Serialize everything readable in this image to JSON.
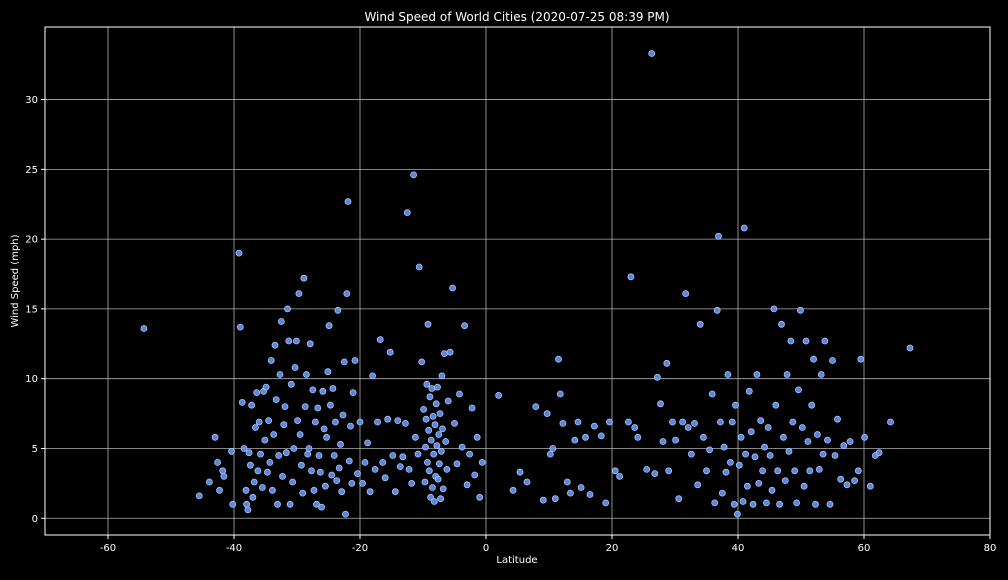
{
  "chart_data": {
    "type": "scatter",
    "title": "Wind Speed of World Cities (2020-07-25 08:39 PM)",
    "xlabel": "Latitude",
    "ylabel": "Wind Speed (mph)",
    "xlim": [
      -70,
      80
    ],
    "ylim": [
      -1.2,
      35.2
    ],
    "xticks": [
      -60,
      -40,
      -20,
      0,
      20,
      40,
      60,
      80
    ],
    "yticks": [
      0,
      5,
      10,
      15,
      20,
      25,
      30
    ],
    "grid": true,
    "colors": {
      "background": "#000000",
      "grid": "#b0b0b0",
      "marker_fill": "#6495ed",
      "marker_edge": "#a8c4ff",
      "text": "#ffffff"
    },
    "points": [
      [
        -54.3,
        13.6
      ],
      [
        -45.5,
        1.6
      ],
      [
        -43.9,
        2.6
      ],
      [
        -43.0,
        5.8
      ],
      [
        -42.6,
        4.0
      ],
      [
        -42.3,
        2.0
      ],
      [
        -41.8,
        3.4
      ],
      [
        -41.6,
        3.0
      ],
      [
        -40.4,
        4.8
      ],
      [
        -40.2,
        1.0
      ],
      [
        -39.2,
        19.0
      ],
      [
        -39.0,
        13.7
      ],
      [
        -38.7,
        8.3
      ],
      [
        -38.4,
        5.0
      ],
      [
        -38.1,
        2.0
      ],
      [
        -38.0,
        1.0
      ],
      [
        -37.8,
        0.6
      ],
      [
        -37.6,
        4.7
      ],
      [
        -37.4,
        3.8
      ],
      [
        -37.2,
        8.1
      ],
      [
        -37.0,
        1.5
      ],
      [
        -36.8,
        2.6
      ],
      [
        -36.6,
        6.5
      ],
      [
        -36.4,
        9.0
      ],
      [
        -36.2,
        3.4
      ],
      [
        -36.0,
        6.9
      ],
      [
        -35.8,
        4.6
      ],
      [
        -35.5,
        2.2
      ],
      [
        -35.3,
        9.1
      ],
      [
        -35.1,
        5.6
      ],
      [
        -34.9,
        9.4
      ],
      [
        -34.7,
        3.3
      ],
      [
        -34.5,
        7.0
      ],
      [
        -34.3,
        4.0
      ],
      [
        -34.1,
        11.3
      ],
      [
        -33.9,
        2.0
      ],
      [
        -33.7,
        6.0
      ],
      [
        -33.5,
        12.4
      ],
      [
        -33.3,
        8.5
      ],
      [
        -33.1,
        1.0
      ],
      [
        -32.9,
        4.5
      ],
      [
        -32.7,
        10.3
      ],
      [
        -32.5,
        14.1
      ],
      [
        -32.3,
        3.0
      ],
      [
        -32.1,
        6.7
      ],
      [
        -31.9,
        8.0
      ],
      [
        -31.7,
        4.7
      ],
      [
        -31.5,
        15.0
      ],
      [
        -31.3,
        12.7
      ],
      [
        -31.1,
        1.0
      ],
      [
        -30.9,
        9.6
      ],
      [
        -30.7,
        2.6
      ],
      [
        -30.5,
        5.0
      ],
      [
        -30.3,
        10.8
      ],
      [
        -30.1,
        12.7
      ],
      [
        -29.9,
        7.0
      ],
      [
        -29.7,
        16.1
      ],
      [
        -29.5,
        6.0
      ],
      [
        -29.3,
        3.8
      ],
      [
        -29.1,
        1.8
      ],
      [
        -28.9,
        17.2
      ],
      [
        -28.7,
        8.0
      ],
      [
        -28.5,
        10.3
      ],
      [
        -28.3,
        4.6
      ],
      [
        -28.1,
        5.0
      ],
      [
        -27.9,
        12.5
      ],
      [
        -27.7,
        3.4
      ],
      [
        -27.5,
        9.2
      ],
      [
        -27.3,
        2.0
      ],
      [
        -27.1,
        6.9
      ],
      [
        -26.9,
        1.0
      ],
      [
        -26.7,
        7.9
      ],
      [
        -26.5,
        4.5
      ],
      [
        -26.3,
        3.3
      ],
      [
        -26.1,
        0.8
      ],
      [
        -25.9,
        9.1
      ],
      [
        -25.7,
        6.4
      ],
      [
        -25.5,
        2.3
      ],
      [
        -25.3,
        5.8
      ],
      [
        -25.1,
        10.5
      ],
      [
        -24.9,
        13.8
      ],
      [
        -24.7,
        8.1
      ],
      [
        -24.5,
        3.1
      ],
      [
        -24.3,
        9.3
      ],
      [
        -24.1,
        4.5
      ],
      [
        -23.9,
        6.9
      ],
      [
        -23.7,
        2.7
      ],
      [
        -23.5,
        14.9
      ],
      [
        -23.3,
        3.6
      ],
      [
        -23.1,
        5.3
      ],
      [
        -22.9,
        1.9
      ],
      [
        -22.7,
        7.4
      ],
      [
        -22.5,
        11.2
      ],
      [
        -22.3,
        0.3
      ],
      [
        -22.1,
        16.1
      ],
      [
        -21.9,
        22.7
      ],
      [
        -21.7,
        4.1
      ],
      [
        -21.5,
        6.6
      ],
      [
        -21.3,
        2.5
      ],
      [
        -21.1,
        9.0
      ],
      [
        -20.8,
        11.3
      ],
      [
        -20.4,
        3.2
      ],
      [
        -20.0,
        6.9
      ],
      [
        -19.6,
        2.5
      ],
      [
        -19.2,
        4.0
      ],
      [
        -18.8,
        5.4
      ],
      [
        -18.4,
        1.9
      ],
      [
        -18.0,
        10.2
      ],
      [
        -17.6,
        3.5
      ],
      [
        -17.2,
        6.9
      ],
      [
        -16.8,
        12.8
      ],
      [
        -16.4,
        4.0
      ],
      [
        -16.0,
        2.9
      ],
      [
        -15.6,
        7.1
      ],
      [
        -15.2,
        11.9
      ],
      [
        -14.8,
        4.5
      ],
      [
        -14.4,
        1.9
      ],
      [
        -14.0,
        7.0
      ],
      [
        -13.6,
        3.7
      ],
      [
        -13.2,
        4.4
      ],
      [
        -12.8,
        6.8
      ],
      [
        -12.5,
        21.9
      ],
      [
        -12.2,
        3.5
      ],
      [
        -11.8,
        2.5
      ],
      [
        -11.5,
        24.6
      ],
      [
        -11.2,
        5.8
      ],
      [
        -10.8,
        4.6
      ],
      [
        -10.6,
        18.0
      ],
      [
        -10.2,
        11.2
      ],
      [
        -9.9,
        7.8
      ],
      [
        -9.7,
        2.6
      ],
      [
        -9.6,
        5.1
      ],
      [
        -9.5,
        7.1
      ],
      [
        -9.4,
        9.6
      ],
      [
        -9.3,
        4.0
      ],
      [
        -9.2,
        13.9
      ],
      [
        -9.1,
        6.3
      ],
      [
        -9.0,
        3.4
      ],
      [
        -8.9,
        8.7
      ],
      [
        -8.8,
        1.5
      ],
      [
        -8.7,
        5.6
      ],
      [
        -8.6,
        9.3
      ],
      [
        -8.5,
        2.2
      ],
      [
        -8.4,
        7.3
      ],
      [
        -8.3,
        4.6
      ],
      [
        -8.2,
        1.2
      ],
      [
        -8.1,
        6.7
      ],
      [
        -8.0,
        3.0
      ],
      [
        -7.9,
        8.2
      ],
      [
        -7.8,
        5.2
      ],
      [
        -7.7,
        9.4
      ],
      [
        -7.6,
        2.8
      ],
      [
        -7.5,
        6.0
      ],
      [
        -7.4,
        3.9
      ],
      [
        -7.3,
        7.5
      ],
      [
        -7.2,
        1.4
      ],
      [
        -7.1,
        4.8
      ],
      [
        -7.0,
        10.2
      ],
      [
        -6.9,
        6.4
      ],
      [
        -6.8,
        2.1
      ],
      [
        -6.6,
        11.8
      ],
      [
        -6.4,
        5.5
      ],
      [
        -6.2,
        3.5
      ],
      [
        -6.0,
        8.4
      ],
      [
        -5.7,
        11.9
      ],
      [
        -5.3,
        16.5
      ],
      [
        -5.0,
        6.8
      ],
      [
        -4.6,
        3.9
      ],
      [
        -4.2,
        8.9
      ],
      [
        -3.8,
        5.1
      ],
      [
        -3.4,
        13.8
      ],
      [
        -3.0,
        2.4
      ],
      [
        -2.6,
        4.6
      ],
      [
        -2.2,
        7.9
      ],
      [
        -1.8,
        3.1
      ],
      [
        -1.4,
        5.8
      ],
      [
        -1.0,
        1.5
      ],
      [
        -0.6,
        4.0
      ],
      [
        2.0,
        8.8
      ],
      [
        4.3,
        2.0
      ],
      [
        5.4,
        3.3
      ],
      [
        6.5,
        2.6
      ],
      [
        7.9,
        8.0
      ],
      [
        9.1,
        1.3
      ],
      [
        9.7,
        7.5
      ],
      [
        10.2,
        4.6
      ],
      [
        10.6,
        5.0
      ],
      [
        11.0,
        1.4
      ],
      [
        11.5,
        11.4
      ],
      [
        11.8,
        8.9
      ],
      [
        12.2,
        6.8
      ],
      [
        12.9,
        2.6
      ],
      [
        13.4,
        1.8
      ],
      [
        14.1,
        5.6
      ],
      [
        14.6,
        6.9
      ],
      [
        15.1,
        2.2
      ],
      [
        15.8,
        5.8
      ],
      [
        16.5,
        1.7
      ],
      [
        17.2,
        6.6
      ],
      [
        18.3,
        5.9
      ],
      [
        19.0,
        1.1
      ],
      [
        19.6,
        6.9
      ],
      [
        20.5,
        3.4
      ],
      [
        21.2,
        3.0
      ],
      [
        22.6,
        6.9
      ],
      [
        23.0,
        17.3
      ],
      [
        23.6,
        6.5
      ],
      [
        24.1,
        5.8
      ],
      [
        25.5,
        3.5
      ],
      [
        26.3,
        33.3
      ],
      [
        26.8,
        3.2
      ],
      [
        27.2,
        10.1
      ],
      [
        27.7,
        8.2
      ],
      [
        28.1,
        5.5
      ],
      [
        28.7,
        11.1
      ],
      [
        29.0,
        3.4
      ],
      [
        29.6,
        6.9
      ],
      [
        30.1,
        5.6
      ],
      [
        30.6,
        1.4
      ],
      [
        31.2,
        6.9
      ],
      [
        31.7,
        16.1
      ],
      [
        32.1,
        6.5
      ],
      [
        32.6,
        4.6
      ],
      [
        33.1,
        6.8
      ],
      [
        33.6,
        2.4
      ],
      [
        34.0,
        13.9
      ],
      [
        34.5,
        5.8
      ],
      [
        35.0,
        3.4
      ],
      [
        35.5,
        4.9
      ],
      [
        35.9,
        8.9
      ],
      [
        36.3,
        1.1
      ],
      [
        36.7,
        14.9
      ],
      [
        36.9,
        20.2
      ],
      [
        37.2,
        6.9
      ],
      [
        37.5,
        1.8
      ],
      [
        37.8,
        5.1
      ],
      [
        38.1,
        3.3
      ],
      [
        38.4,
        10.3
      ],
      [
        38.8,
        4.0
      ],
      [
        39.1,
        6.9
      ],
      [
        39.4,
        1.0
      ],
      [
        39.6,
        8.1
      ],
      [
        39.9,
        0.3
      ],
      [
        40.2,
        3.8
      ],
      [
        40.5,
        5.8
      ],
      [
        40.8,
        1.2
      ],
      [
        41.0,
        20.8
      ],
      [
        41.2,
        4.6
      ],
      [
        41.5,
        2.3
      ],
      [
        41.8,
        9.1
      ],
      [
        42.1,
        6.2
      ],
      [
        42.4,
        1.0
      ],
      [
        42.7,
        4.4
      ],
      [
        43.0,
        10.3
      ],
      [
        43.3,
        2.5
      ],
      [
        43.6,
        7.0
      ],
      [
        43.9,
        3.4
      ],
      [
        44.2,
        5.1
      ],
      [
        44.5,
        1.1
      ],
      [
        44.8,
        6.5
      ],
      [
        45.1,
        4.5
      ],
      [
        45.4,
        2.0
      ],
      [
        45.7,
        15.0
      ],
      [
        46.0,
        8.1
      ],
      [
        46.3,
        3.4
      ],
      [
        46.6,
        1.0
      ],
      [
        46.9,
        13.9
      ],
      [
        47.2,
        5.8
      ],
      [
        47.5,
        2.7
      ],
      [
        47.8,
        10.3
      ],
      [
        48.1,
        4.8
      ],
      [
        48.4,
        12.7
      ],
      [
        48.7,
        6.9
      ],
      [
        49.0,
        3.4
      ],
      [
        49.3,
        1.1
      ],
      [
        49.6,
        9.2
      ],
      [
        49.9,
        14.9
      ],
      [
        50.2,
        6.5
      ],
      [
        50.5,
        2.3
      ],
      [
        50.8,
        12.7
      ],
      [
        51.1,
        5.5
      ],
      [
        51.4,
        3.4
      ],
      [
        51.7,
        8.1
      ],
      [
        52.0,
        11.4
      ],
      [
        52.3,
        1.0
      ],
      [
        52.6,
        6.0
      ],
      [
        52.9,
        3.5
      ],
      [
        53.2,
        10.3
      ],
      [
        53.5,
        4.6
      ],
      [
        53.8,
        12.7
      ],
      [
        54.2,
        5.6
      ],
      [
        54.6,
        1.0
      ],
      [
        55.0,
        11.3
      ],
      [
        55.4,
        4.5
      ],
      [
        55.8,
        7.1
      ],
      [
        56.3,
        2.8
      ],
      [
        56.8,
        5.2
      ],
      [
        57.3,
        2.4
      ],
      [
        57.8,
        5.5
      ],
      [
        58.5,
        2.7
      ],
      [
        59.1,
        3.4
      ],
      [
        59.5,
        11.4
      ],
      [
        60.1,
        5.8
      ],
      [
        61.0,
        2.3
      ],
      [
        61.8,
        4.5
      ],
      [
        62.4,
        4.7
      ],
      [
        64.2,
        6.9
      ],
      [
        67.3,
        12.2
      ]
    ]
  }
}
